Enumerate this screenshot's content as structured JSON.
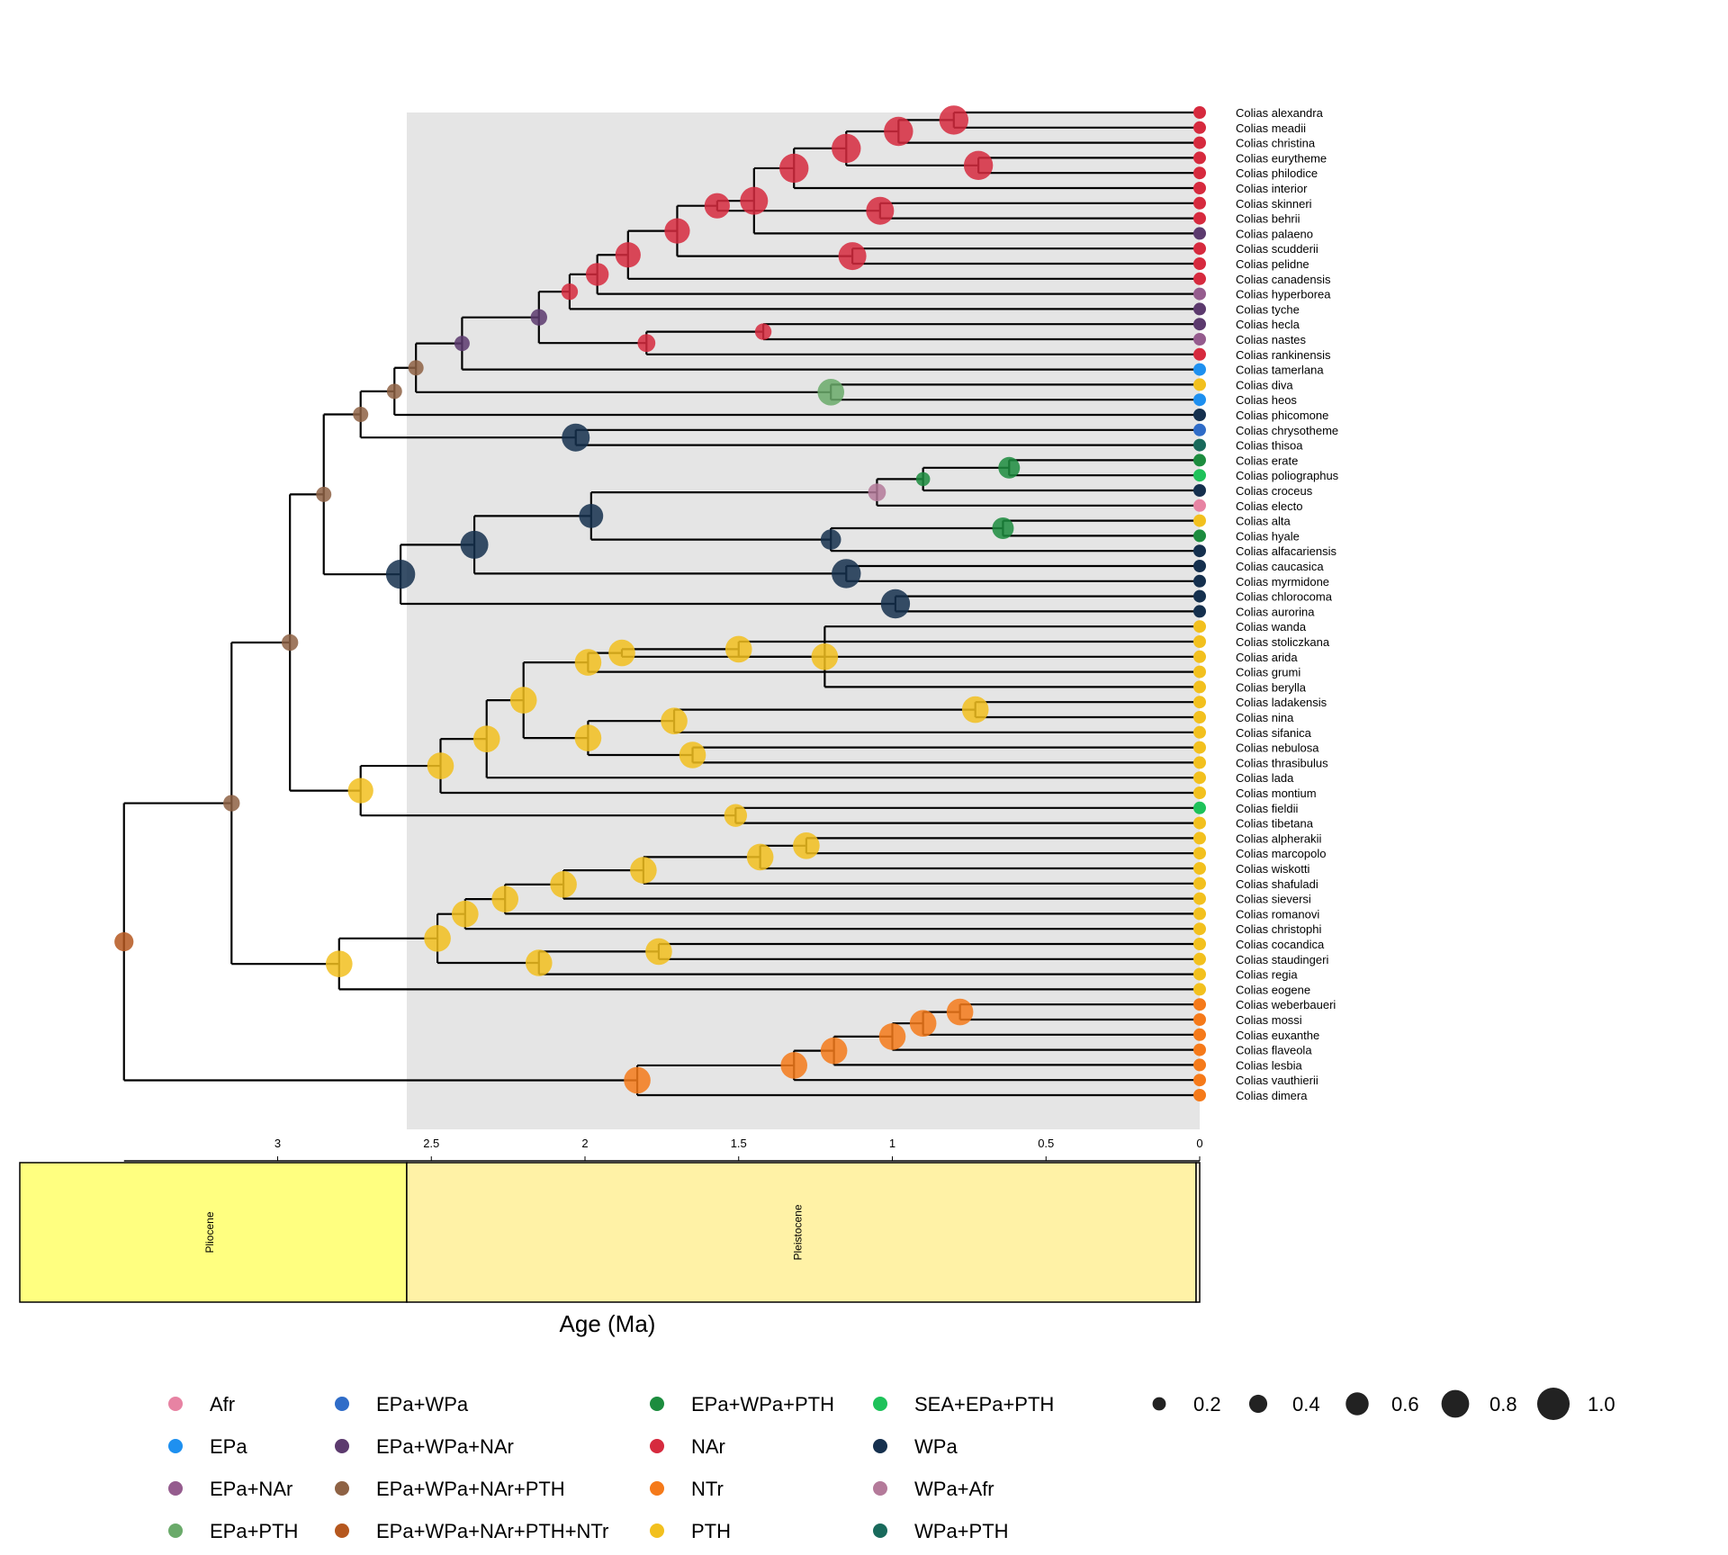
{
  "tips": [
    {
      "name": "Colias alexandra",
      "state": "NAr"
    },
    {
      "name": "Colias meadii",
      "state": "NAr"
    },
    {
      "name": "Colias christina",
      "state": "NAr"
    },
    {
      "name": "Colias eurytheme",
      "state": "NAr"
    },
    {
      "name": "Colias philodice",
      "state": "NAr"
    },
    {
      "name": "Colias interior",
      "state": "NAr"
    },
    {
      "name": "Colias skinneri",
      "state": "NAr"
    },
    {
      "name": "Colias behrii",
      "state": "NAr"
    },
    {
      "name": "Colias palaeno",
      "state": "EPa+WPa+NAr"
    },
    {
      "name": "Colias scudderii",
      "state": "NAr"
    },
    {
      "name": "Colias pelidne",
      "state": "NAr"
    },
    {
      "name": "Colias canadensis",
      "state": "NAr"
    },
    {
      "name": "Colias hyperborea",
      "state": "EPa+NAr"
    },
    {
      "name": "Colias tyche",
      "state": "EPa+WPa+NAr"
    },
    {
      "name": "Colias hecla",
      "state": "EPa+WPa+NAr"
    },
    {
      "name": "Colias nastes",
      "state": "EPa+NAr"
    },
    {
      "name": "Colias rankinensis",
      "state": "NAr"
    },
    {
      "name": "Colias tamerlana",
      "state": "EPa"
    },
    {
      "name": "Colias diva",
      "state": "PTH"
    },
    {
      "name": "Colias heos",
      "state": "EPa"
    },
    {
      "name": "Colias phicomone",
      "state": "WPa"
    },
    {
      "name": "Colias chrysotheme",
      "state": "EPa+WPa"
    },
    {
      "name": "Colias thisoa",
      "state": "WPa+PTH"
    },
    {
      "name": "Colias erate",
      "state": "EPa+WPa+PTH"
    },
    {
      "name": "Colias poliographus",
      "state": "SEA+EPa+PTH"
    },
    {
      "name": "Colias croceus",
      "state": "WPa"
    },
    {
      "name": "Colias electo",
      "state": "Afr"
    },
    {
      "name": "Colias alta",
      "state": "PTH"
    },
    {
      "name": "Colias hyale",
      "state": "EPa+WPa+PTH"
    },
    {
      "name": "Colias alfacariensis",
      "state": "WPa"
    },
    {
      "name": "Colias caucasica",
      "state": "WPa"
    },
    {
      "name": "Colias myrmidone",
      "state": "WPa"
    },
    {
      "name": "Colias chlorocoma",
      "state": "WPa"
    },
    {
      "name": "Colias aurorina",
      "state": "WPa"
    },
    {
      "name": "Colias wanda",
      "state": "PTH"
    },
    {
      "name": "Colias stoliczkana",
      "state": "PTH"
    },
    {
      "name": "Colias arida",
      "state": "PTH"
    },
    {
      "name": "Colias grumi",
      "state": "PTH"
    },
    {
      "name": "Colias berylla",
      "state": "PTH"
    },
    {
      "name": "Colias ladakensis",
      "state": "PTH"
    },
    {
      "name": "Colias nina",
      "state": "PTH"
    },
    {
      "name": "Colias sifanica",
      "state": "PTH"
    },
    {
      "name": "Colias nebulosa",
      "state": "PTH"
    },
    {
      "name": "Colias thrasibulus",
      "state": "PTH"
    },
    {
      "name": "Colias lada",
      "state": "PTH"
    },
    {
      "name": "Colias montium",
      "state": "PTH"
    },
    {
      "name": "Colias fieldii",
      "state": "SEA+EPa+PTH"
    },
    {
      "name": "Colias tibetana",
      "state": "PTH"
    },
    {
      "name": "Colias alpherakii",
      "state": "PTH"
    },
    {
      "name": "Colias marcopolo",
      "state": "PTH"
    },
    {
      "name": "Colias wiskotti",
      "state": "PTH"
    },
    {
      "name": "Colias shafuladi",
      "state": "PTH"
    },
    {
      "name": "Colias sieversi",
      "state": "PTH"
    },
    {
      "name": "Colias romanovi",
      "state": "PTH"
    },
    {
      "name": "Colias christophi",
      "state": "PTH"
    },
    {
      "name": "Colias cocandica",
      "state": "PTH"
    },
    {
      "name": "Colias staudingeri",
      "state": "PTH"
    },
    {
      "name": "Colias regia",
      "state": "PTH"
    },
    {
      "name": "Colias eogene",
      "state": "PTH"
    },
    {
      "name": "Colias weberbaueri",
      "state": "NTr"
    },
    {
      "name": "Colias mossi",
      "state": "NTr"
    },
    {
      "name": "Colias euxanthe",
      "state": "NTr"
    },
    {
      "name": "Colias flaveola",
      "state": "NTr"
    },
    {
      "name": "Colias lesbia",
      "state": "NTr"
    },
    {
      "name": "Colias vauthierii",
      "state": "NTr"
    },
    {
      "name": "Colias dimera",
      "state": "NTr"
    }
  ],
  "nodes": [
    {
      "age": 3.5,
      "state": "EPa+WPa+NAr+PTH+NTr",
      "p": 0.4,
      "children": [
        "n_core",
        "n_ntr"
      ]
    },
    {
      "id": "n_core",
      "age": 3.15,
      "state": "EPa+WPa+NAr+PTH",
      "p": 0.3,
      "children": [
        "n_north",
        "n_pthB"
      ]
    },
    {
      "id": "n_north",
      "age": 2.96,
      "state": "EPa+WPa+NAr+PTH",
      "p": 0.3,
      "children": [
        "n_holarc",
        "n_pthA"
      ]
    },
    {
      "id": "n_holarc",
      "age": 2.85,
      "state": "EPa+WPa+NAr+PTH",
      "p": 0.25,
      "children": [
        "n_nar_grp",
        "n_wpa_grp"
      ]
    },
    {
      "id": "n_nar_grp",
      "age": 2.73,
      "state": "EPa+WPa+NAr+PTH",
      "p": 0.25,
      "children": [
        "n_a1",
        "n_phic_grp"
      ]
    },
    {
      "id": "n_phic_grp",
      "age": 2.03,
      "state": "WPa",
      "p": 0.75,
      "children": [
        "Colias chrysotheme",
        "Colias thisoa"
      ]
    },
    {
      "id": "n_a1",
      "age": 2.62,
      "state": "EPa+WPa+NAr+PTH",
      "p": 0.25,
      "children": [
        "n_a2",
        "Colias phicomone"
      ]
    },
    {
      "id": "n_a2",
      "age": 2.55,
      "state": "EPa+WPa+NAr+PTH",
      "p": 0.25,
      "children": [
        "n_a3",
        "n_diva"
      ]
    },
    {
      "id": "n_diva",
      "age": 1.2,
      "state": "EPa+PTH",
      "p": 0.7,
      "children": [
        "Colias diva",
        "Colias heos"
      ]
    },
    {
      "id": "n_a3",
      "age": 2.4,
      "state": "EPa+WPa+NAr",
      "p": 0.25,
      "children": [
        "n_a4",
        "Colias tamerlana"
      ]
    },
    {
      "id": "n_a4",
      "age": 2.15,
      "state": "EPa+WPa+NAr",
      "p": 0.3,
      "children": [
        "n_a5",
        "n_hecla"
      ]
    },
    {
      "id": "n_hecla",
      "age": 1.8,
      "state": "NAr",
      "p": 0.35,
      "children": [
        "n_hecla2",
        "Colias rankinensis"
      ]
    },
    {
      "id": "n_hecla2",
      "age": 1.42,
      "state": "NAr",
      "p": 0.3,
      "children": [
        "Colias hecla",
        "Colias nastes"
      ]
    },
    {
      "id": "n_a5",
      "age": 2.05,
      "state": "NAr",
      "p": 0.3,
      "children": [
        "n_a6",
        "Colias tyche"
      ]
    },
    {
      "id": "n_a6",
      "age": 1.96,
      "state": "NAr",
      "p": 0.55,
      "children": [
        "n_a7",
        "Colias hyperborea"
      ]
    },
    {
      "id": "n_a7",
      "age": 1.86,
      "state": "NAr",
      "p": 0.65,
      "children": [
        "n_a8",
        "Colias canadensis"
      ]
    },
    {
      "id": "n_a8",
      "age": 1.7,
      "state": "NAr",
      "p": 0.65,
      "children": [
        "n_a9",
        "n_scud"
      ]
    },
    {
      "id": "n_scud",
      "age": 1.13,
      "state": "NAr",
      "p": 0.75,
      "children": [
        "Colias scudderii",
        "Colias pelidne"
      ]
    },
    {
      "id": "n_a9",
      "age": 1.57,
      "state": "NAr",
      "p": 0.65,
      "children": [
        "n_a10",
        "n_skin"
      ]
    },
    {
      "id": "n_skin",
      "age": 1.04,
      "state": "NAr",
      "p": 0.75,
      "children": [
        "Colias skinneri",
        "Colias behrii"
      ]
    },
    {
      "id": "n_a10",
      "age": 1.45,
      "state": "NAr",
      "p": 0.75,
      "children": [
        "n_a11",
        "Colias palaeno"
      ]
    },
    {
      "id": "n_a11",
      "age": 1.32,
      "state": "NAr",
      "p": 0.8,
      "children": [
        "n_a12",
        "Colias interior"
      ]
    },
    {
      "id": "n_a12",
      "age": 1.15,
      "state": "NAr",
      "p": 0.8,
      "children": [
        "n_alex",
        "n_eury"
      ]
    },
    {
      "id": "n_eury",
      "age": 0.72,
      "state": "NAr",
      "p": 0.8,
      "children": [
        "Colias eurytheme",
        "Colias philodice"
      ]
    },
    {
      "id": "n_alex",
      "age": 0.98,
      "state": "NAr",
      "p": 0.8,
      "children": [
        "n_alex2",
        "Colias christina"
      ]
    },
    {
      "id": "n_alex2",
      "age": 0.8,
      "state": "NAr",
      "p": 0.8,
      "children": [
        "Colias alexandra",
        "Colias meadii"
      ]
    },
    {
      "id": "n_wpa_grp",
      "age": 2.6,
      "state": "WPa",
      "p": 0.8,
      "children": [
        "n_w1",
        "n_chloro"
      ]
    },
    {
      "id": "n_chloro",
      "age": 0.99,
      "state": "WPa",
      "p": 0.8,
      "children": [
        "Colias chlorocoma",
        "Colias aurorina"
      ]
    },
    {
      "id": "n_w1",
      "age": 2.36,
      "state": "WPa",
      "p": 0.75,
      "children": [
        "n_w2",
        "n_cauc"
      ]
    },
    {
      "id": "n_cauc",
      "age": 1.15,
      "state": "WPa",
      "p": 0.8,
      "children": [
        "Colias caucasica",
        "Colias myrmidone"
      ]
    },
    {
      "id": "n_w2",
      "age": 1.98,
      "state": "WPa",
      "p": 0.6,
      "children": [
        "n_w3",
        "n_alta"
      ]
    },
    {
      "id": "n_alta",
      "age": 1.2,
      "state": "WPa",
      "p": 0.45,
      "children": [
        "n_alta2",
        "Colias alfacariensis"
      ]
    },
    {
      "id": "n_alta2",
      "age": 0.64,
      "state": "EPa+WPa+PTH",
      "p": 0.5,
      "children": [
        "Colias alta",
        "Colias hyale"
      ]
    },
    {
      "id": "n_w3",
      "age": 1.05,
      "state": "WPa+Afr",
      "p": 0.35,
      "children": [
        "n_w4",
        "Colias electo"
      ]
    },
    {
      "id": "n_w4",
      "age": 0.9,
      "state": "EPa+WPa+PTH",
      "p": 0.2,
      "children": [
        "n_erate",
        "Colias croceus"
      ]
    },
    {
      "id": "n_erate",
      "age": 0.62,
      "state": "EPa+WPa+PTH",
      "p": 0.5,
      "children": [
        "Colias erate",
        "Colias poliographus"
      ]
    },
    {
      "id": "n_pthA",
      "age": 2.73,
      "state": "PTH",
      "p": 0.65,
      "children": [
        "n_p1",
        "n_fieldii"
      ]
    },
    {
      "id": "n_fieldii",
      "age": 1.51,
      "state": "PTH",
      "p": 0.55,
      "children": [
        "Colias fieldii",
        "Colias tibetana"
      ]
    },
    {
      "id": "n_p1",
      "age": 2.47,
      "state": "PTH",
      "p": 0.7,
      "children": [
        "n_p2",
        "Colias montium"
      ]
    },
    {
      "id": "n_p2",
      "age": 2.32,
      "state": "PTH",
      "p": 0.7,
      "children": [
        "n_p3",
        "Colias lada"
      ]
    },
    {
      "id": "n_p3",
      "age": 2.2,
      "state": "PTH",
      "p": 0.7,
      "children": [
        "n_p4",
        "n_p5"
      ]
    },
    {
      "id": "n_p4",
      "age": 1.99,
      "state": "PTH",
      "p": 0.7,
      "children": [
        "n_p6",
        "Colias grumi"
      ]
    },
    {
      "id": "n_p6",
      "age": 1.88,
      "state": "PTH",
      "p": 0.7,
      "children": [
        "n_p7",
        "Colias arida"
      ]
    },
    {
      "id": "n_p7",
      "age": 1.5,
      "state": "PTH",
      "p": 0.7,
      "children": [
        "n_wanda",
        "Colias stoliczkana"
      ]
    },
    {
      "id": "n_wanda",
      "age": 1.22,
      "state": "PTH",
      "p": 0.7,
      "children": [
        "Colias wanda",
        "Colias berylla"
      ]
    },
    {
      "id": "n_p5",
      "age": 1.99,
      "state": "PTH",
      "p": 0.7,
      "children": [
        "n_p8",
        "n_sif"
      ]
    },
    {
      "id": "n_p8",
      "age": 1.71,
      "state": "PTH",
      "p": 0.7,
      "children": [
        "n_lad",
        "Colias sifanica"
      ]
    },
    {
      "id": "n_lad",
      "age": 0.73,
      "state": "PTH",
      "p": 0.7,
      "children": [
        "Colias ladakensis",
        "Colias nina"
      ]
    },
    {
      "id": "n_sif",
      "age": 1.65,
      "state": "PTH",
      "p": 0.7,
      "children": [
        "Colias nebulosa",
        "Colias thrasibulus"
      ]
    },
    {
      "id": "n_pthB",
      "age": 2.8,
      "state": "PTH",
      "p": 0.7,
      "children": [
        "n_q1",
        "Colias eogene"
      ]
    },
    {
      "id": "n_q1",
      "age": 2.48,
      "state": "PTH",
      "p": 0.7,
      "children": [
        "n_q2",
        "n_q3"
      ]
    },
    {
      "id": "n_q2",
      "age": 2.39,
      "state": "PTH",
      "p": 0.7,
      "children": [
        "n_q4",
        "Colias christophi"
      ]
    },
    {
      "id": "n_q4",
      "age": 2.26,
      "state": "PTH",
      "p": 0.7,
      "children": [
        "n_q5",
        "Colias romanovi"
      ]
    },
    {
      "id": "n_q5",
      "age": 2.07,
      "state": "PTH",
      "p": 0.7,
      "children": [
        "n_q6",
        "Colias sieversi"
      ]
    },
    {
      "id": "n_q6",
      "age": 1.81,
      "state": "PTH",
      "p": 0.7,
      "children": [
        "n_q7",
        "Colias shafuladi"
      ]
    },
    {
      "id": "n_q7",
      "age": 1.43,
      "state": "PTH",
      "p": 0.7,
      "children": [
        "n_q8",
        "Colias wiskotti"
      ]
    },
    {
      "id": "n_q8",
      "age": 1.28,
      "state": "PTH",
      "p": 0.7,
      "children": [
        "Colias alpherakii",
        "Colias marcopolo"
      ]
    },
    {
      "id": "n_q3",
      "age": 2.15,
      "state": "PTH",
      "p": 0.7,
      "children": [
        "n_coc",
        "Colias regia"
      ]
    },
    {
      "id": "n_coc",
      "age": 1.76,
      "state": "PTH",
      "p": 0.7,
      "children": [
        "Colias cocandica",
        "Colias staudingeri"
      ]
    },
    {
      "id": "n_ntr",
      "age": 1.83,
      "state": "NTr",
      "p": 0.7,
      "children": [
        "n_r1",
        "Colias dimera"
      ]
    },
    {
      "id": "n_r1",
      "age": 1.32,
      "state": "NTr",
      "p": 0.7,
      "children": [
        "n_r2",
        "Colias vauthierii"
      ]
    },
    {
      "id": "n_r2",
      "age": 1.19,
      "state": "NTr",
      "p": 0.7,
      "children": [
        "n_r3",
        "Colias lesbia"
      ]
    },
    {
      "id": "n_r3",
      "age": 1.0,
      "state": "NTr",
      "p": 0.7,
      "children": [
        "n_r4",
        "Colias flaveola"
      ]
    },
    {
      "id": "n_r4",
      "age": 0.9,
      "state": "NTr",
      "p": 0.7,
      "children": [
        "n_r5",
        "Colias euxanthe"
      ]
    },
    {
      "id": "n_r5",
      "age": 0.78,
      "state": "NTr",
      "p": 0.7,
      "children": [
        "Colias weberbaueri",
        "Colias mossi"
      ]
    }
  ],
  "axis": {
    "title": "Age (Ma)",
    "ticks": [
      "3",
      "2.5",
      "2",
      "1.5",
      "1",
      "0.5",
      "0"
    ],
    "tick_values": [
      3,
      2.5,
      2,
      1.5,
      1,
      0.5,
      0
    ],
    "max_age": 3.5
  },
  "epochs": [
    {
      "name": "Pliocene",
      "start": 5.333,
      "end": 2.58,
      "color": "#FFFF80"
    },
    {
      "name": "Pleistocene",
      "start": 2.58,
      "end": 0.0117,
      "color": "#FFF2A6"
    },
    {
      "name": "",
      "start": 0.0117,
      "end": 0,
      "color": "#FEF2E0"
    }
  ],
  "shaded_interval": {
    "start": 2.58,
    "end": 0,
    "color": "#E5E5E5"
  },
  "legend": {
    "states": [
      {
        "label": "Afr",
        "color": "#E783A3"
      },
      {
        "label": "EPa",
        "color": "#1E90F0"
      },
      {
        "label": "EPa+NAr",
        "color": "#955C8E"
      },
      {
        "label": "EPa+PTH",
        "color": "#6AAA6A"
      },
      {
        "label": "EPa+WPa",
        "color": "#2F6CC8"
      },
      {
        "label": "EPa+WPa+NAr",
        "color": "#5C3A6E"
      },
      {
        "label": "EPa+WPa+NAr+PTH",
        "color": "#8E6244"
      },
      {
        "label": "EPa+WPa+NAr+PTH+NTr",
        "color": "#B5571E"
      },
      {
        "label": "EPa+WPa+PTH",
        "color": "#1C8C3E"
      },
      {
        "label": "NAr",
        "color": "#D62A3E"
      },
      {
        "label": "NTr",
        "color": "#F57A1A"
      },
      {
        "label": "PTH",
        "color": "#F2C01E"
      },
      {
        "label": "SEA+EPa+PTH",
        "color": "#1EC25A"
      },
      {
        "label": "WPa",
        "color": "#15304E"
      },
      {
        "label": "WPa+Afr",
        "color": "#B47A9A"
      },
      {
        "label": "WPa+PTH",
        "color": "#196A5C"
      }
    ],
    "sizes": [
      {
        "label": "0.2",
        "value": 0.2
      },
      {
        "label": "0.4",
        "value": 0.4
      },
      {
        "label": "0.6",
        "value": 0.6
      },
      {
        "label": "0.8",
        "value": 0.8
      },
      {
        "label": "1.0",
        "value": 1.0
      }
    ],
    "size_color": "#222222"
  }
}
